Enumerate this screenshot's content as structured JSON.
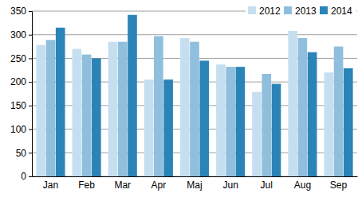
{
  "chart_data": {
    "type": "bar",
    "categories": [
      "Jan",
      "Feb",
      "Mar",
      "Apr",
      "Maj",
      "Jun",
      "Jul",
      "Aug",
      "Sep"
    ],
    "series": [
      {
        "name": "2012",
        "color": "#c6dff0",
        "values": [
          278,
          270,
          285,
          205,
          293,
          237,
          179,
          308,
          220
        ]
      },
      {
        "name": "2013",
        "color": "#8fbfdd",
        "values": [
          289,
          258,
          285,
          297,
          285,
          232,
          217,
          293,
          275
        ]
      },
      {
        "name": "2014",
        "color": "#2b84b8",
        "values": [
          315,
          250,
          342,
          205,
          245,
          232,
          196,
          263,
          229
        ]
      }
    ],
    "ylim": [
      0,
      350
    ],
    "yticks": [
      0,
      50,
      100,
      150,
      200,
      250,
      300,
      350
    ],
    "grid": true,
    "legend": "top-right"
  }
}
